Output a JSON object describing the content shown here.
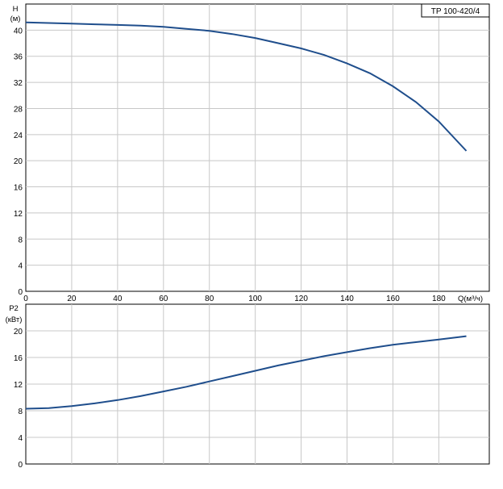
{
  "chart_data": [
    {
      "type": "line",
      "model_label": "TP 100-420/4",
      "ylabel_line1": "H",
      "ylabel_line2": "(м)",
      "xlabel": "Q(м³/ч)",
      "xlim": [
        0,
        202
      ],
      "ylim": [
        0,
        44
      ],
      "x_ticks": [
        "0",
        "20",
        "40",
        "60",
        "80",
        "100",
        "120",
        "140",
        "160",
        "180"
      ],
      "y_ticks": [
        "0",
        "4",
        "8",
        "12",
        "16",
        "20",
        "24",
        "28",
        "32",
        "36",
        "40"
      ],
      "grid": true,
      "color": "#1f4e8c",
      "series": [
        {
          "x": [
            0,
            10,
            20,
            30,
            40,
            50,
            60,
            70,
            80,
            90,
            100,
            110,
            120,
            130,
            140,
            150,
            160,
            170,
            180,
            192
          ],
          "y": [
            41.2,
            41.1,
            41.0,
            40.9,
            40.8,
            40.7,
            40.5,
            40.2,
            39.9,
            39.4,
            38.8,
            38.0,
            37.2,
            36.2,
            34.9,
            33.4,
            31.4,
            29.0,
            26.0,
            21.5
          ]
        }
      ]
    },
    {
      "type": "line",
      "ylabel_line1": "P2",
      "ylabel_line2": "(кВт)",
      "xlim": [
        0,
        202
      ],
      "ylim": [
        0,
        24
      ],
      "y_ticks": [
        "0",
        "4",
        "8",
        "12",
        "16",
        "20"
      ],
      "grid": true,
      "color": "#1f4e8c",
      "series": [
        {
          "x": [
            0,
            10,
            20,
            30,
            40,
            50,
            60,
            70,
            80,
            90,
            100,
            110,
            120,
            130,
            140,
            150,
            160,
            170,
            180,
            192
          ],
          "y": [
            8.3,
            8.4,
            8.7,
            9.1,
            9.6,
            10.2,
            10.9,
            11.6,
            12.4,
            13.2,
            14.0,
            14.8,
            15.5,
            16.2,
            16.8,
            17.4,
            17.9,
            18.3,
            18.7,
            19.2
          ]
        }
      ]
    }
  ]
}
